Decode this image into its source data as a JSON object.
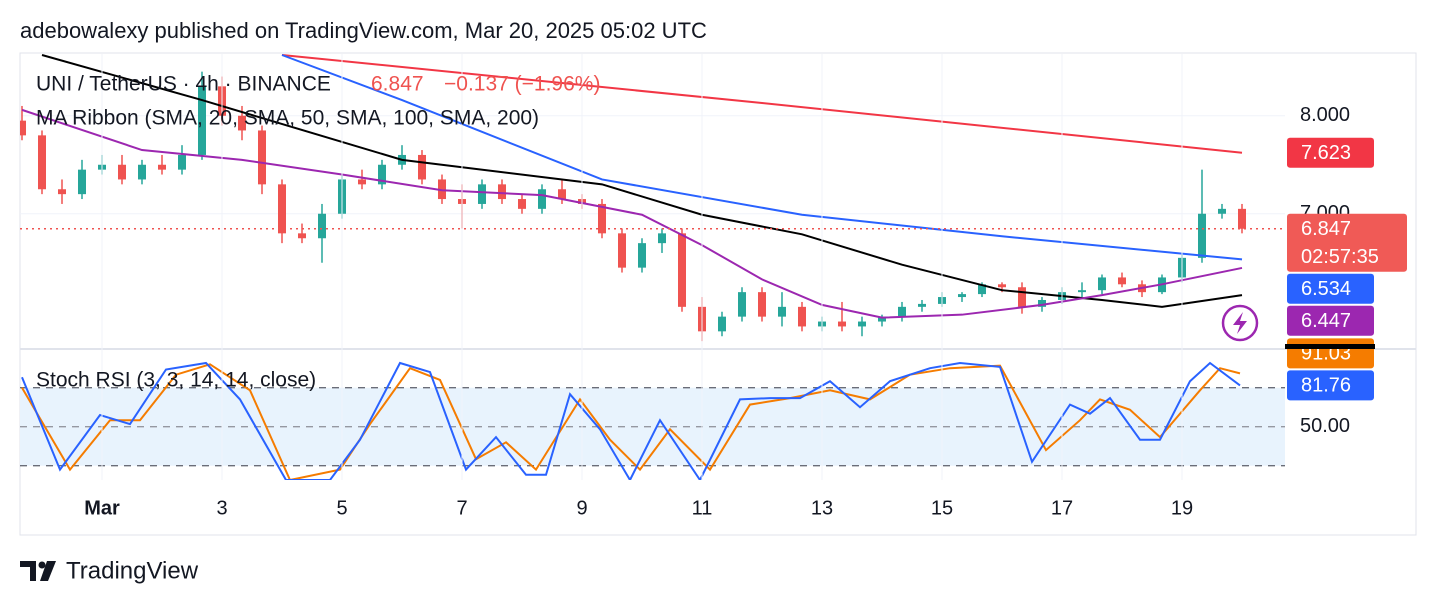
{
  "published": "adebowalexy published on TradingView.com, Mar 20, 2025 05:02 UTC",
  "brand": "TradingView",
  "chart_data": [
    {
      "type": "candlestick",
      "title": "UNI / TetherUS · 4h · BINANCE",
      "change": "−0.137 (−1.96%)",
      "indicator": "MA Ribbon (SMA, 20, SMA, 50, SMA, 100, SMA, 200)",
      "countdown": "02:57:35",
      "up_color": "#26a69a",
      "down_color": "#ef5350",
      "last_color": "#f05a56",
      "grid": true,
      "categories": [
        null,
        null,
        null,
        null,
        "Mar",
        null,
        null,
        null,
        null,
        null,
        "3",
        null,
        null,
        null,
        null,
        null,
        "5",
        null,
        null,
        null,
        null,
        null,
        "7",
        null,
        null,
        null,
        null,
        null,
        "9",
        null,
        null,
        null,
        null,
        null,
        "11",
        null,
        null,
        null,
        null,
        null,
        "13",
        null,
        null,
        null,
        null,
        null,
        "15",
        null,
        null,
        null,
        null,
        null,
        "17",
        null,
        null,
        null,
        null,
        null,
        "19",
        null,
        null,
        null
      ],
      "candles": [
        [
          7.95,
          8.1,
          7.75,
          7.8
        ],
        [
          7.8,
          7.85,
          7.2,
          7.25
        ],
        [
          7.25,
          7.35,
          7.1,
          7.2
        ],
        [
          7.2,
          7.55,
          7.15,
          7.45
        ],
        [
          7.45,
          7.6,
          7.4,
          7.5
        ],
        [
          7.5,
          7.6,
          7.3,
          7.35
        ],
        [
          7.35,
          7.55,
          7.3,
          7.5
        ],
        [
          7.5,
          7.6,
          7.4,
          7.45
        ],
        [
          7.45,
          7.7,
          7.4,
          7.6
        ],
        [
          7.6,
          8.45,
          7.55,
          8.3
        ],
        [
          8.3,
          8.4,
          7.9,
          8.0
        ],
        [
          8.0,
          8.1,
          7.75,
          7.85
        ],
        [
          7.85,
          7.9,
          7.2,
          7.3
        ],
        [
          7.3,
          7.35,
          6.7,
          6.8
        ],
        [
          6.8,
          6.9,
          6.7,
          6.75
        ],
        [
          6.75,
          7.1,
          6.5,
          7.0
        ],
        [
          7.0,
          7.4,
          6.95,
          7.35
        ],
        [
          7.35,
          7.45,
          7.25,
          7.3
        ],
        [
          7.3,
          7.55,
          7.25,
          7.5
        ],
        [
          7.5,
          7.7,
          7.45,
          7.6
        ],
        [
          7.6,
          7.65,
          7.3,
          7.35
        ],
        [
          7.35,
          7.4,
          7.1,
          7.15
        ],
        [
          7.15,
          7.3,
          6.85,
          7.1
        ],
        [
          7.1,
          7.35,
          7.05,
          7.3
        ],
        [
          7.3,
          7.35,
          7.1,
          7.15
        ],
        [
          7.15,
          7.2,
          7.0,
          7.05
        ],
        [
          7.05,
          7.3,
          7.0,
          7.25
        ],
        [
          7.25,
          7.35,
          7.1,
          7.15
        ],
        [
          7.15,
          7.2,
          7.05,
          7.1
        ],
        [
          7.1,
          7.15,
          6.75,
          6.8
        ],
        [
          6.8,
          6.85,
          6.4,
          6.45
        ],
        [
          6.45,
          6.75,
          6.4,
          6.7
        ],
        [
          6.7,
          6.85,
          6.6,
          6.8
        ],
        [
          6.8,
          6.85,
          6.0,
          6.05
        ],
        [
          6.05,
          6.15,
          5.7,
          5.8
        ],
        [
          5.8,
          6.0,
          5.75,
          5.95
        ],
        [
          5.95,
          6.25,
          5.9,
          6.2
        ],
        [
          6.2,
          6.25,
          5.9,
          5.95
        ],
        [
          5.95,
          6.2,
          5.85,
          6.05
        ],
        [
          6.05,
          6.1,
          5.8,
          5.85
        ],
        [
          5.85,
          5.95,
          5.8,
          5.9
        ],
        [
          5.9,
          6.1,
          5.8,
          5.85
        ],
        [
          5.85,
          5.95,
          5.75,
          5.9
        ],
        [
          5.9,
          5.97,
          5.85,
          5.95
        ],
        [
          5.95,
          6.1,
          5.9,
          6.05
        ],
        [
          6.05,
          6.12,
          6.0,
          6.08
        ],
        [
          6.08,
          6.2,
          6.05,
          6.15
        ],
        [
          6.15,
          6.2,
          6.1,
          6.18
        ],
        [
          6.18,
          6.3,
          6.15,
          6.28
        ],
        [
          6.28,
          6.3,
          6.2,
          6.25
        ],
        [
          6.25,
          6.3,
          5.98,
          6.05
        ],
        [
          6.05,
          6.15,
          6.0,
          6.12
        ],
        [
          6.12,
          6.25,
          6.08,
          6.2
        ],
        [
          6.2,
          6.3,
          6.15,
          6.22
        ],
        [
          6.22,
          6.38,
          6.18,
          6.35
        ],
        [
          6.35,
          6.4,
          6.25,
          6.28
        ],
        [
          6.28,
          6.32,
          6.15,
          6.2
        ],
        [
          6.2,
          6.38,
          6.18,
          6.35
        ],
        [
          6.35,
          6.6,
          6.3,
          6.55
        ],
        [
          6.55,
          7.45,
          6.5,
          7.0
        ],
        [
          7.0,
          7.1,
          6.95,
          7.05
        ],
        [
          7.05,
          7.1,
          6.8,
          6.847
        ]
      ],
      "series": [
        {
          "color": "#f23645",
          "axis_label": true,
          "x": [
            13,
            37,
            61
          ],
          "values": [
            8.62,
            8.13,
            7.623
          ]
        },
        {
          "color": "#2962ff",
          "axis_label": true,
          "x": [
            13,
            19,
            29,
            39,
            49,
            61
          ],
          "values": [
            8.62,
            8.16,
            7.35,
            6.99,
            6.77,
            6.534
          ]
        },
        {
          "color": "#000000",
          "axis_label": false,
          "x": [
            1,
            9,
            19,
            29,
            34,
            39,
            44,
            49,
            54,
            57,
            61
          ],
          "values": [
            8.62,
            8.16,
            7.55,
            7.3,
            6.99,
            6.79,
            6.48,
            6.22,
            6.12,
            6.05,
            6.17
          ]
        },
        {
          "color": "#9c27b0",
          "axis_label": true,
          "x": [
            0,
            6,
            11,
            16,
            21,
            26,
            31,
            34,
            37,
            40,
            43,
            47,
            51,
            54,
            57,
            61
          ],
          "values": [
            8.06,
            7.65,
            7.55,
            7.4,
            7.24,
            7.19,
            6.99,
            6.68,
            6.33,
            6.07,
            5.94,
            5.97,
            6.07,
            6.17,
            6.28,
            6.447
          ]
        }
      ],
      "ylim": [
        5.63,
        8.62
      ],
      "yticks": [
        {
          "value": 7,
          "label": "7.000"
        },
        {
          "value": 8,
          "label": "8.000"
        }
      ]
    },
    {
      "type": "line",
      "title": "Stoch RSI (3, 3, 14, 14, close)",
      "band_color": "#e8f3fd",
      "levels": [
        20,
        50,
        80
      ],
      "series": [
        {
          "color": "#f57c00",
          "axis_label": true,
          "x": [
            0,
            2.4,
            4.4,
            5.9,
            7.7,
            9.4,
            11.4,
            13.4,
            15.9,
            17.4,
            19.4,
            20.9,
            22.7,
            24.2,
            25.7,
            27.9,
            29.4,
            30.9,
            32.4,
            34.4,
            36.4,
            38.4,
            40.4,
            42.4,
            44.4,
            46.4,
            48.9,
            51.2,
            52.9,
            53.9,
            55.4,
            56.9,
            58.9,
            59.9,
            60.9
          ],
          "values": [
            80,
            17,
            55,
            55,
            90,
            98,
            78,
            9,
            17,
            52,
            95,
            86,
            25,
            38,
            17,
            71,
            40,
            17,
            48,
            17,
            67,
            72,
            78,
            71,
            90,
            95,
            97,
            32,
            55,
            71,
            63,
            42,
            78,
            95,
            91.03
          ]
        },
        {
          "color": "#2962ff",
          "axis_label": true,
          "x": [
            0,
            1.9,
            3.9,
            5.4,
            7.2,
            9.2,
            10.9,
            13.2,
            15.4,
            16.9,
            18.9,
            20.4,
            22.2,
            23.7,
            25.2,
            26.2,
            27.4,
            28.9,
            30.4,
            31.9,
            33.9,
            35.9,
            37.4,
            38.9,
            40.4,
            41.9,
            43.4,
            45.4,
            46.9,
            48.9,
            50.5,
            52.4,
            53.4,
            54.4,
            55.9,
            56.9,
            58.4,
            59.4,
            60.9
          ],
          "values": [
            88,
            17,
            59,
            52,
            94,
            99,
            71,
            9,
            9,
            40,
            99,
            92,
            17,
            42,
            13,
            13,
            75,
            48,
            9,
            55,
            9,
            71,
            72,
            72,
            85,
            65,
            85,
            95,
            99,
            96,
            23,
            67,
            60,
            72,
            40,
            40,
            85,
            99,
            81.76
          ]
        }
      ],
      "ylim": [
        9,
        109
      ],
      "yticks": [
        {
          "value": 50,
          "label": "50.00"
        }
      ]
    }
  ]
}
